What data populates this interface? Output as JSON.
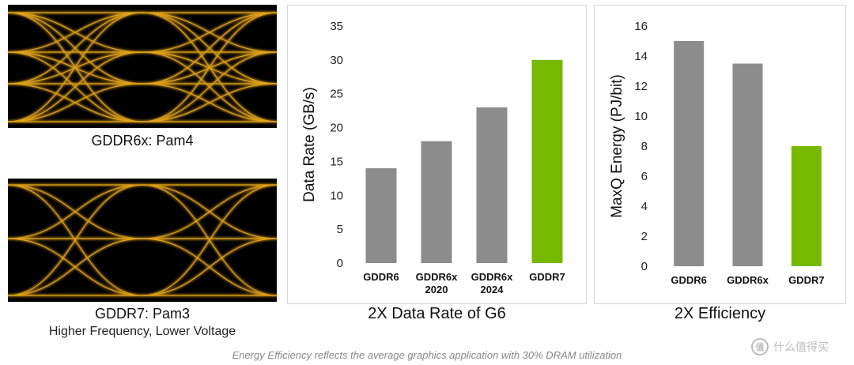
{
  "eye_diagrams": {
    "pam4_label": "GDDR6x: Pam4",
    "pam3_label": "GDDR7: Pam3",
    "pam3_sublabel": "Higher Frequency, Lower Voltage",
    "trace_color": "#e0a21a"
  },
  "footnote": "Energy Efficiency reflects the average graphics application with 30% DRAM utilization",
  "watermark": {
    "icon": "值",
    "text": "什么值得买"
  },
  "chart_data": [
    {
      "type": "bar",
      "title": "2X Data Rate of G6",
      "ylabel": "Data Rate (GB/s)",
      "ylim": [
        0,
        35
      ],
      "yticks": [
        0,
        5,
        10,
        15,
        20,
        25,
        30,
        35
      ],
      "categories": [
        [
          "GDDR6"
        ],
        [
          "GDDR6x",
          "2020"
        ],
        [
          "GDDR6x",
          "2024"
        ],
        [
          "GDDR7"
        ]
      ],
      "values": [
        14,
        18,
        23,
        30
      ],
      "colors": [
        "#8c8c8c",
        "#8c8c8c",
        "#8c8c8c",
        "#76b900"
      ],
      "grid": false
    },
    {
      "type": "bar",
      "title": "2X Efficiency",
      "ylabel": "MaxQ Energy (PJ/bit)",
      "ylim": [
        0,
        16
      ],
      "yticks": [
        0,
        2,
        4,
        6,
        8,
        10,
        12,
        14,
        16
      ],
      "categories": [
        [
          "GDDR6"
        ],
        [
          "GDDR6x"
        ],
        [
          "GDDR7"
        ]
      ],
      "values": [
        15,
        13.5,
        8
      ],
      "colors": [
        "#8c8c8c",
        "#8c8c8c",
        "#76b900"
      ],
      "grid": false
    }
  ]
}
